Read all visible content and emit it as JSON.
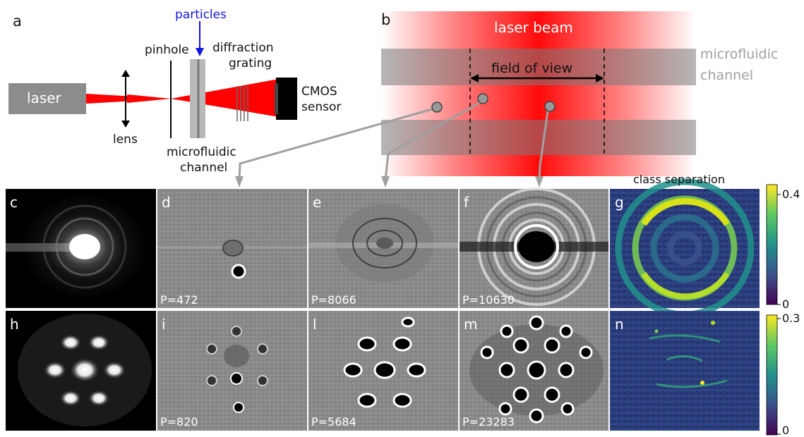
{
  "panel_letters": {
    "a": "a",
    "b": "b",
    "c": "c",
    "d": "d",
    "e": "e",
    "f": "f",
    "g": "g",
    "h": "h",
    "i": "i",
    "l": "l",
    "m": "m",
    "n": "n"
  },
  "setup": {
    "laser": "laser",
    "particles": "particles",
    "pinhole": "pinhole",
    "diffraction_line1": "diffraction",
    "diffraction_line2": "grating",
    "cmos_line1": "CMOS",
    "cmos_line2": "sensor",
    "lens": "lens",
    "channel_line1": "microfluidic",
    "channel_line2": "channel"
  },
  "beam_panel": {
    "laser_beam": "laser beam",
    "field_of_view": "field of view",
    "channel_line1": "microfluidic",
    "channel_line2": "channel"
  },
  "p_values": {
    "d": "P=472",
    "e": "P=8066",
    "f": "P=10630",
    "i": "P=820",
    "l": "P=5684",
    "m": "P=23283"
  },
  "class_separation_title": "class separation",
  "colorbars": {
    "top_max": "0.4",
    "top_min": "0",
    "bottom_max": "0.3",
    "bottom_min": "0"
  },
  "colors": {
    "laser_red": "#ff0000",
    "particles_blue": "#1515e0",
    "channel_gray": "#808080",
    "viridis_low": "#440154",
    "viridis_high": "#fde725"
  }
}
